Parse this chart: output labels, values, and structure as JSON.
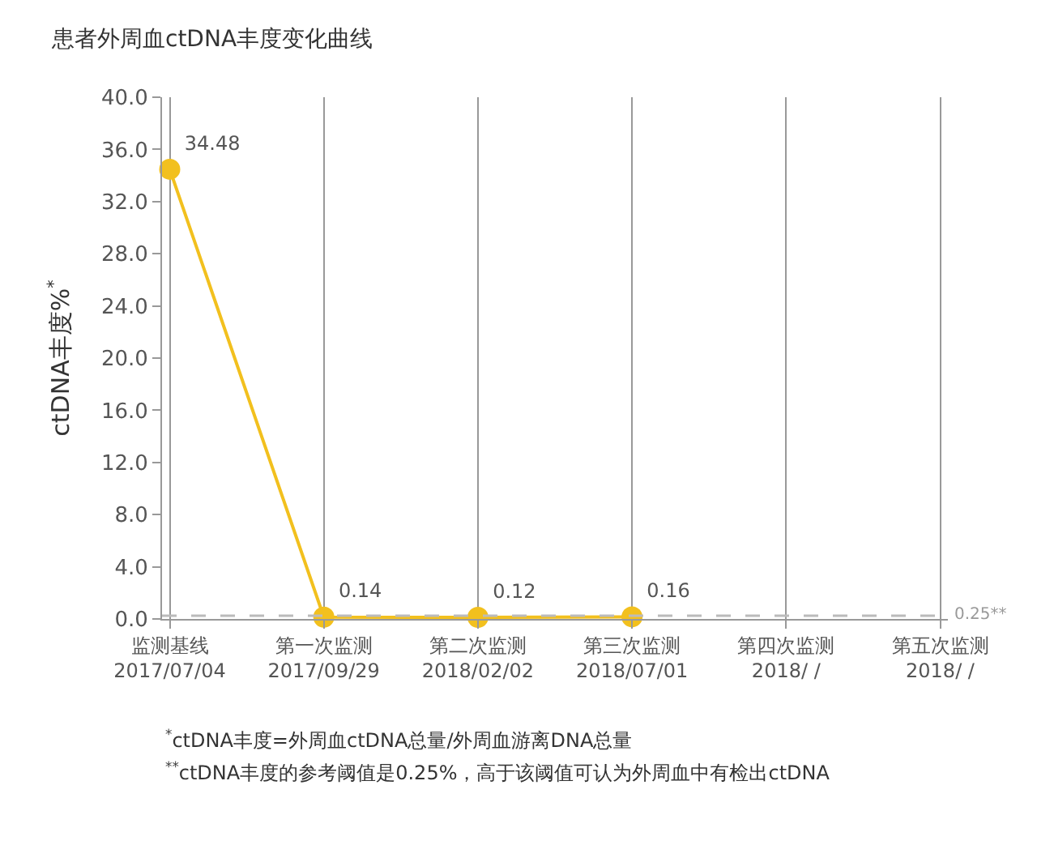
{
  "chart_data": {
    "type": "line",
    "title": "患者外周血ctDNA丰度变化曲线",
    "ylabel": "ctDNA丰度%$^{*}$",
    "categories": [
      "监测基线\n2017/07/04",
      "第一次监测\n2017/09/29",
      "第二次监测\n2018/02/02",
      "第三次监测\n2018/07/01",
      "第四次监测\n2018/ /",
      "第五次监测\n2018/ /"
    ],
    "series": [
      {
        "color": "#f2c01e",
        "values": [
          34.48,
          0.14,
          0.12,
          0.16,
          null,
          null
        ]
      }
    ],
    "ylim": [
      0,
      40
    ],
    "yticks": [
      {
        "value": 0,
        "label": "0.0"
      },
      {
        "value": 4,
        "label": "4.0"
      },
      {
        "value": 8,
        "label": "8.0"
      },
      {
        "value": 12,
        "label": "12.0"
      },
      {
        "value": 16,
        "label": "16.0"
      },
      {
        "value": 20,
        "label": "20.0"
      },
      {
        "value": 24,
        "label": "24.0"
      },
      {
        "value": 28,
        "label": "28.0"
      },
      {
        "value": 32,
        "label": "32.0"
      },
      {
        "value": 36,
        "label": "36.0"
      },
      {
        "value": 40,
        "label": "40.0"
      }
    ],
    "ref_lines": [
      {
        "axis": "y",
        "value": 0.25,
        "label": "0.25**",
        "color": "#bbbbbb",
        "line_style": "dashed"
      }
    ],
    "annotations": [
      "$^{*}$ctDNA丰度=外周血ctDNA总量/外周血游离DNA总量",
      "$^{**}$ctDNA丰度的参考阈值是0.25%，高于该阈值可认为外周血中有检出ctDNA"
    ],
    "data_labels": true,
    "grid": "x",
    "legend": false,
    "marker": "circle",
    "line_style": "solid"
  }
}
